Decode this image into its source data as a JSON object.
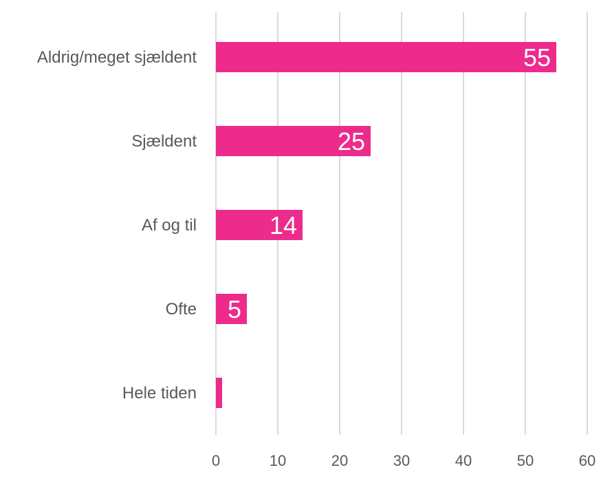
{
  "chart_data": {
    "type": "bar",
    "orientation": "horizontal",
    "title": "",
    "xlabel": "",
    "ylabel": "",
    "categories": [
      "Aldrig/meget sjældent",
      "Sjældent",
      "Af og til",
      "Ofte",
      "Hele tiden"
    ],
    "values": [
      55,
      25,
      14,
      5,
      1
    ],
    "data_labels": [
      "55",
      "25",
      "14",
      "5",
      ""
    ],
    "xlim": [
      0,
      60
    ],
    "x_ticks": [
      0,
      10,
      20,
      30,
      40,
      50,
      60
    ],
    "x_tick_labels": [
      "0",
      "10",
      "20",
      "30",
      "40",
      "50",
      "60"
    ],
    "grid": "vertical",
    "legend": "none",
    "colors": {
      "bar": "#ED2B8C",
      "grid": "#D9D9D9",
      "text": "#595959",
      "data_label": "#FFFFFF"
    }
  }
}
